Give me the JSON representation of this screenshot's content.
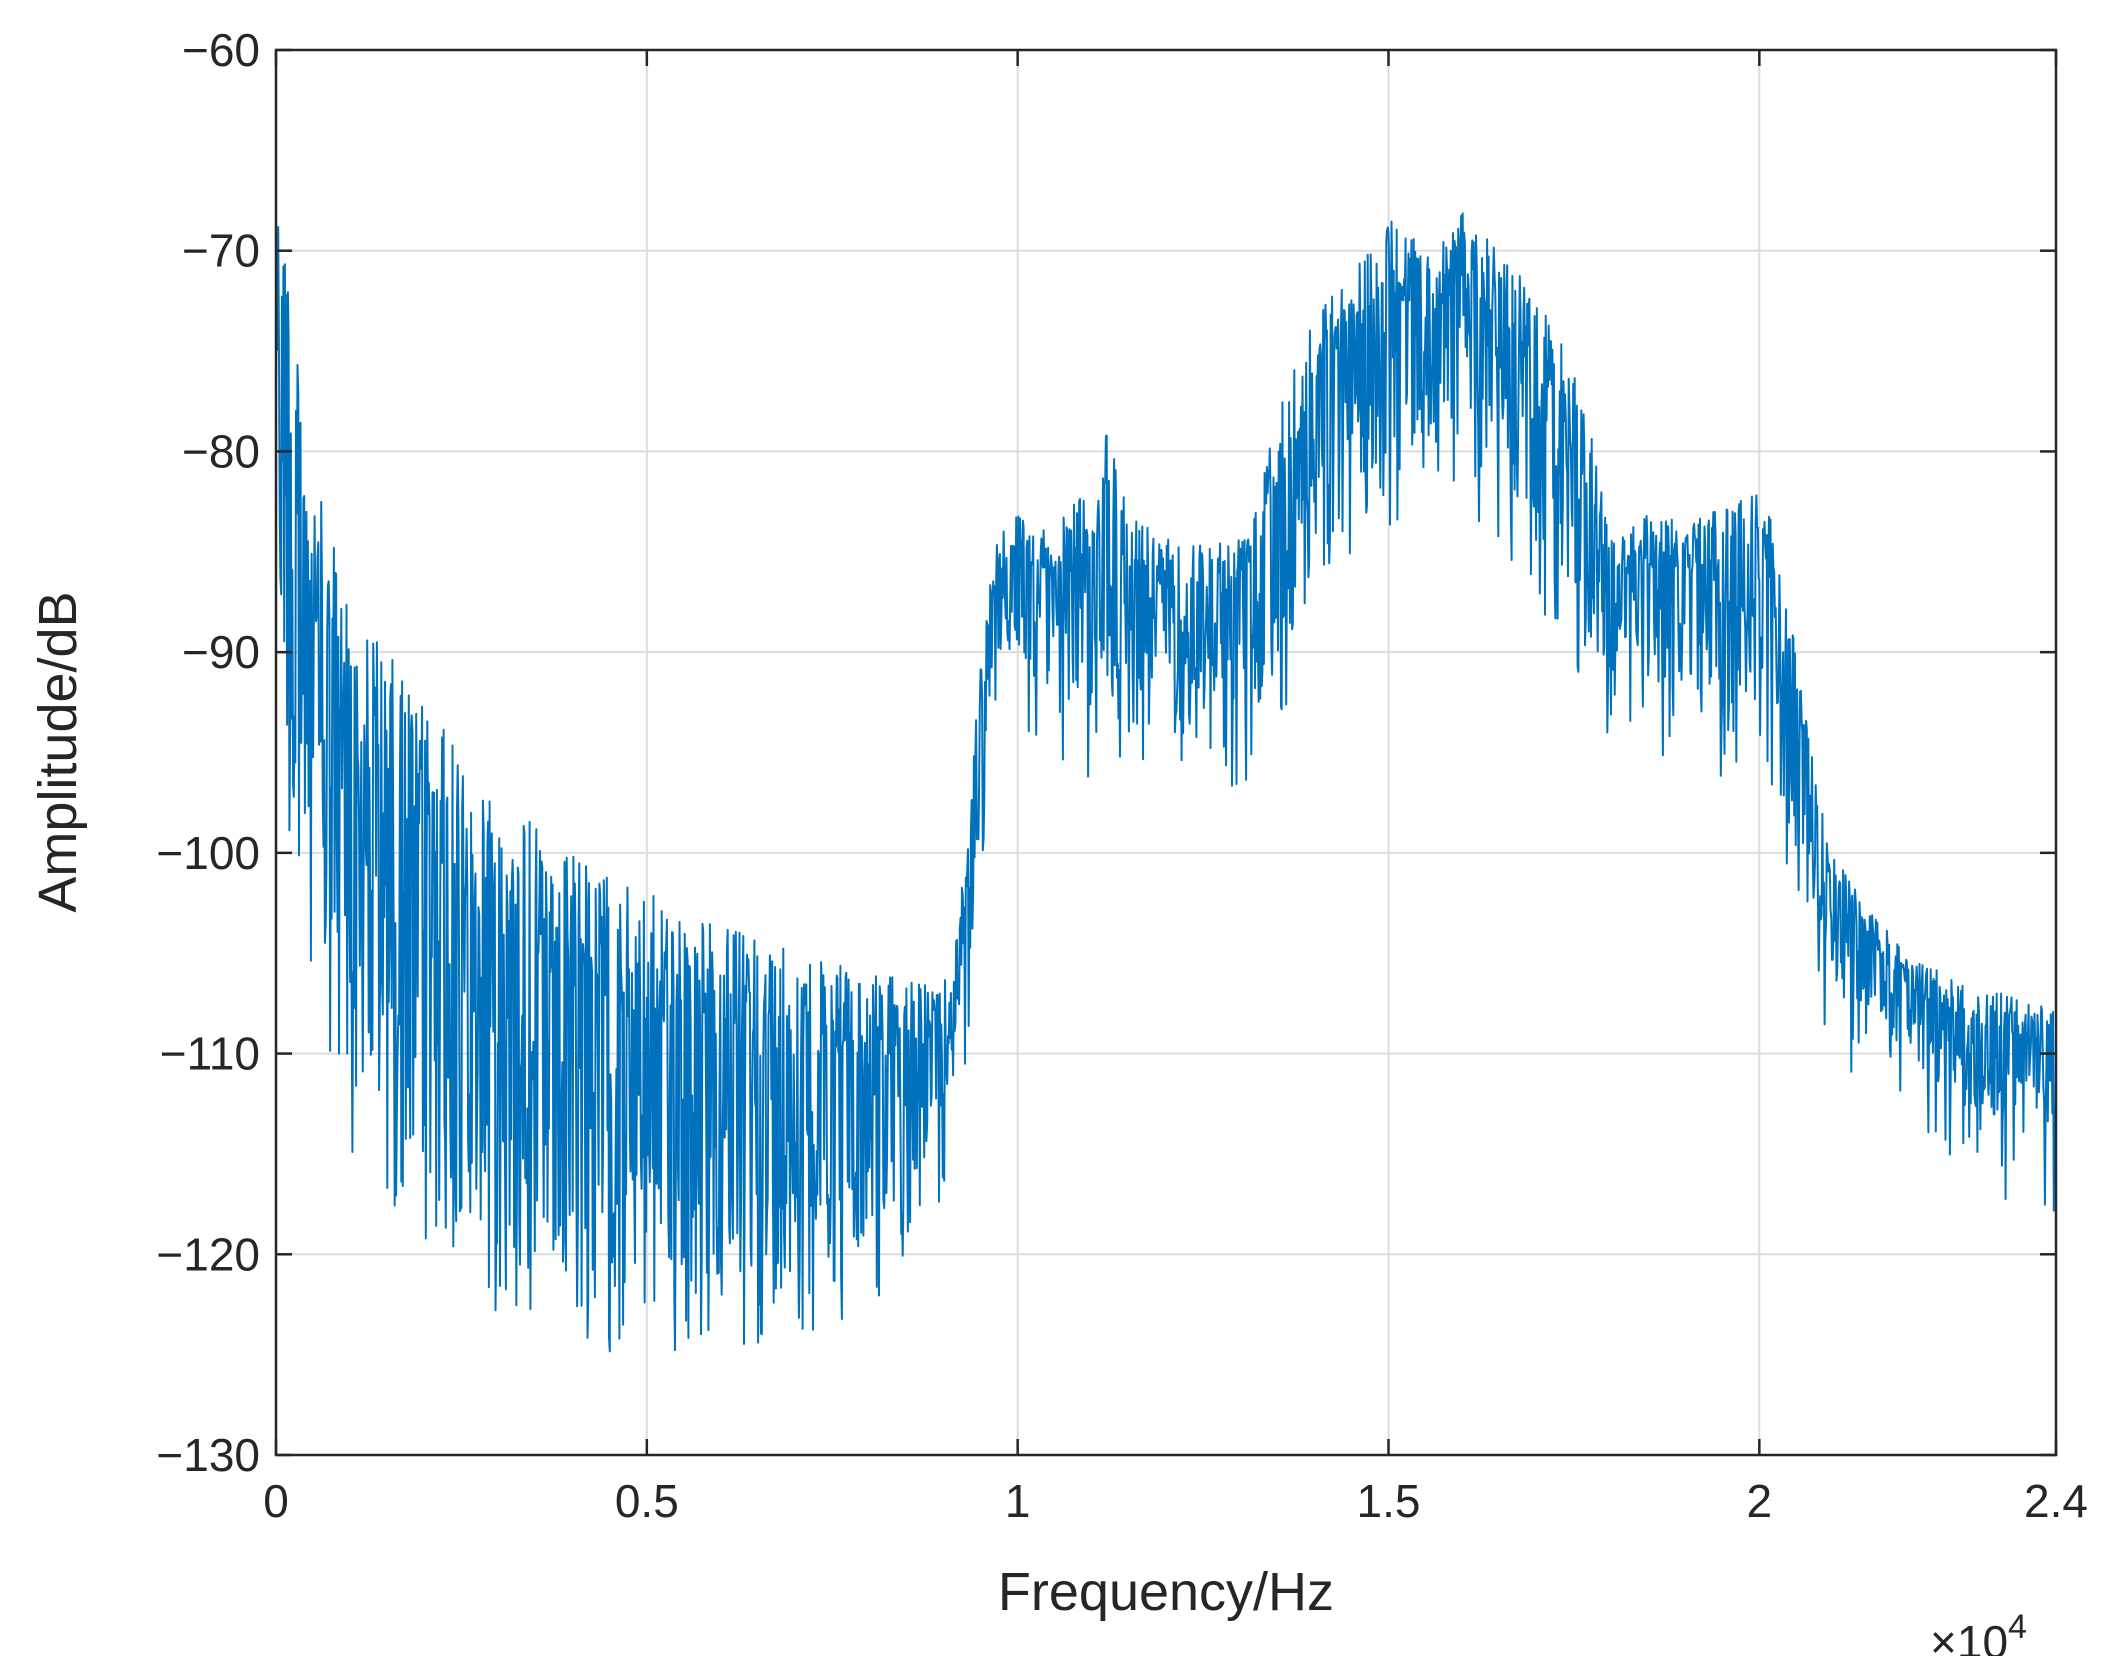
{
  "chart_data": {
    "type": "line",
    "title": "",
    "xlabel": "Frequency/Hz",
    "ylabel": "Amplitude/dB",
    "x_exponent_base": "×10",
    "x_exponent_power": "4",
    "xlim": [
      0,
      2.4
    ],
    "ylim": [
      -130,
      -60
    ],
    "x_scale_multiplier": 10000,
    "xticks": [
      0,
      0.5,
      1,
      1.5,
      2,
      2.4
    ],
    "xtick_labels": [
      "0",
      "0.5",
      "1",
      "1.5",
      "2",
      "2.4"
    ],
    "yticks": [
      -60,
      -70,
      -80,
      -90,
      -100,
      -110,
      -120,
      -130
    ],
    "ytick_labels": [
      "−60",
      "−70",
      "−80",
      "−90",
      "−100",
      "−110",
      "−120",
      "−130"
    ],
    "grid": true,
    "series": [
      {
        "color": "#0072BD",
        "envelope": {
          "x": [
            0,
            0.01,
            0.03,
            0.05,
            0.08,
            0.1,
            0.15,
            0.2,
            0.25,
            0.3,
            0.35,
            0.4,
            0.5,
            0.6,
            0.7,
            0.8,
            0.88,
            0.91,
            0.93,
            0.95,
            0.97,
            1.0,
            1.05,
            1.1,
            1.12,
            1.15,
            1.2,
            1.25,
            1.3,
            1.33,
            1.36,
            1.4,
            1.45,
            1.5,
            1.55,
            1.6,
            1.65,
            1.7,
            1.75,
            1.78,
            1.8,
            1.85,
            1.9,
            1.95,
            2.0,
            2.02,
            2.05,
            2.08,
            2.1,
            2.15,
            2.2,
            2.25,
            2.3,
            2.35,
            2.4
          ],
          "upper": [
            -60,
            -66,
            -76,
            -81,
            -85,
            -87,
            -90,
            -92.5,
            -95,
            -97,
            -98.5,
            -100,
            -102,
            -103.5,
            -105,
            -106,
            -106.5,
            -106,
            -100,
            -90,
            -84,
            -83,
            -84,
            -81,
            -79,
            -83,
            -84,
            -84.5,
            -84,
            -80,
            -76,
            -73,
            -71,
            -68,
            -70,
            -68,
            -70,
            -72,
            -76,
            -80,
            -84,
            -83,
            -83,
            -83,
            -81,
            -84,
            -90,
            -97,
            -100,
            -103,
            -105,
            -106,
            -107,
            -107,
            -108
          ],
          "lower": [
            -80,
            -95,
            -100,
            -104,
            -108,
            -111,
            -114,
            -116,
            -118,
            -119,
            -120,
            -121,
            -121,
            -121,
            -121,
            -119,
            -115,
            -112,
            -107,
            -100,
            -92,
            -90,
            -92,
            -93,
            -92,
            -91,
            -92,
            -92,
            -93,
            -92,
            -89,
            -86,
            -82,
            -80,
            -80,
            -79,
            -81,
            -84,
            -88,
            -90,
            -91,
            -91,
            -92,
            -93,
            -92,
            -96,
            -100,
            -104,
            -106,
            -108,
            -110,
            -112,
            -113,
            -114,
            -114
          ]
        }
      }
    ]
  }
}
